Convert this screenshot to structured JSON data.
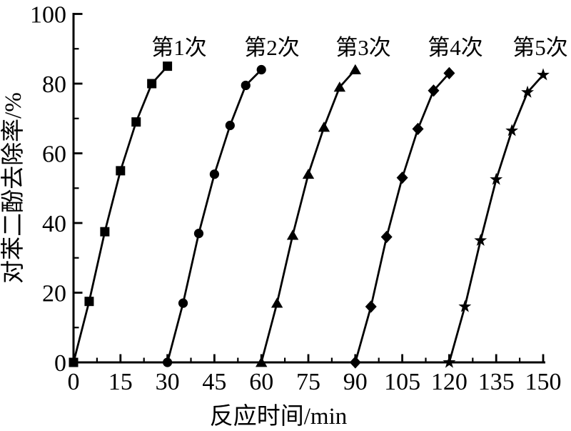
{
  "figure": {
    "background_color": "#ffffff",
    "ink_color": "#000000"
  },
  "chart_data": {
    "type": "line",
    "title": "",
    "xlabel": "反应时间/min",
    "ylabel": "对苯二酚去除率/%",
    "xlim": [
      0,
      150
    ],
    "ylim": [
      0,
      100
    ],
    "x_major_ticks": [
      0,
      15,
      30,
      45,
      60,
      75,
      90,
      105,
      120,
      135,
      150
    ],
    "x_minor_tick_step": 7.5,
    "y_major_ticks": [
      0,
      20,
      40,
      60,
      80,
      100
    ],
    "y_minor_tick_step": 10,
    "grid": false,
    "legend_position": "labels-above-each-curve",
    "series": [
      {
        "name": "第1次",
        "marker": "square-marker",
        "color": "#000000",
        "x": [
          0,
          5,
          10,
          15,
          20,
          25,
          30
        ],
        "y": [
          0,
          17.5,
          37.5,
          55,
          69,
          80,
          85
        ]
      },
      {
        "name": "第2次",
        "marker": "circle-marker",
        "color": "#000000",
        "x": [
          30,
          35,
          40,
          45,
          50,
          55,
          60
        ],
        "y": [
          0,
          17,
          37,
          54,
          68,
          79.5,
          84
        ]
      },
      {
        "name": "第3次",
        "marker": "triangle-marker",
        "color": "#000000",
        "x": [
          60,
          65,
          70,
          75,
          80,
          85,
          90
        ],
        "y": [
          0,
          17,
          36.5,
          54,
          67.5,
          79,
          84
        ]
      },
      {
        "name": "第4次",
        "marker": "diamond-marker",
        "color": "#000000",
        "x": [
          90,
          95,
          100,
          105,
          110,
          115,
          120
        ],
        "y": [
          0,
          16,
          36,
          53,
          67,
          78,
          83
        ]
      },
      {
        "name": "第5次",
        "marker": "star-marker",
        "color": "#000000",
        "x": [
          120,
          125,
          130,
          135,
          140,
          145,
          150
        ],
        "y": [
          0,
          16,
          35,
          52.5,
          66.5,
          77.5,
          82.5
        ]
      }
    ]
  }
}
